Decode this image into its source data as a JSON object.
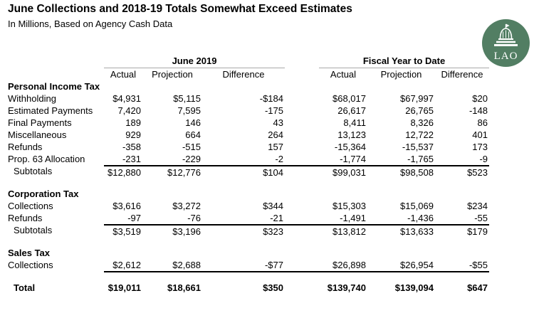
{
  "title": "June Collections and 2018-19 Totals Somewhat Exceed Estimates",
  "subtitle": "In Millions, Based on Agency Cash Data",
  "logo": {
    "text": "LAO",
    "circle_color": "#527e63",
    "glyph_color": "#ffffff"
  },
  "table": {
    "groups": [
      {
        "label": "June 2019",
        "columns": [
          "Actual",
          "Projection",
          "Difference"
        ]
      },
      {
        "label": "Fiscal Year to Date",
        "columns": [
          "Actual",
          "Projection",
          "Difference"
        ]
      }
    ],
    "sections": [
      {
        "header": "Personal Income Tax",
        "rows": [
          {
            "label": "Withholding",
            "june": [
              "$4,931",
              "$5,115",
              "-$184"
            ],
            "fytd": [
              "$68,017",
              "$67,997",
              "$20"
            ]
          },
          {
            "label": "Estimated Payments",
            "june": [
              "7,420",
              "7,595",
              "-175"
            ],
            "fytd": [
              "26,617",
              "26,765",
              "-148"
            ]
          },
          {
            "label": "Final Payments",
            "june": [
              "189",
              "146",
              "43"
            ],
            "fytd": [
              "8,411",
              "8,326",
              "86"
            ]
          },
          {
            "label": "Miscellaneous",
            "june": [
              "929",
              "664",
              "264"
            ],
            "fytd": [
              "13,123",
              "12,722",
              "401"
            ]
          },
          {
            "label": "Refunds",
            "june": [
              "-358",
              "-515",
              "157"
            ],
            "fytd": [
              "-15,364",
              "-15,537",
              "173"
            ]
          },
          {
            "label": "Prop. 63 Allocation",
            "june": [
              "-231",
              "-229",
              "-2"
            ],
            "fytd": [
              "-1,774",
              "-1,765",
              "-9"
            ]
          }
        ],
        "subtotal": {
          "label": "Subtotals",
          "june": [
            "$12,880",
            "$12,776",
            "$104"
          ],
          "fytd": [
            "$99,031",
            "$98,508",
            "$523"
          ]
        }
      },
      {
        "header": "Corporation Tax",
        "rows": [
          {
            "label": "Collections",
            "june": [
              "$3,616",
              "$3,272",
              "$344"
            ],
            "fytd": [
              "$15,303",
              "$15,069",
              "$234"
            ]
          },
          {
            "label": "Refunds",
            "june": [
              "-97",
              "-76",
              "-21"
            ],
            "fytd": [
              "-1,491",
              "-1,436",
              "-55"
            ]
          }
        ],
        "subtotal": {
          "label": "Subtotals",
          "june": [
            "$3,519",
            "$3,196",
            "$323"
          ],
          "fytd": [
            "$13,812",
            "$13,633",
            "$179"
          ]
        }
      },
      {
        "header": "Sales Tax",
        "rows": [
          {
            "label": "Collections",
            "june": [
              "$2,612",
              "$2,688",
              "-$77"
            ],
            "fytd": [
              "$26,898",
              "$26,954",
              "-$55"
            ]
          }
        ],
        "subtotal": null
      }
    ],
    "total": {
      "label": "Total",
      "june": [
        "$19,011",
        "$18,661",
        "$350"
      ],
      "fytd": [
        "$139,740",
        "$139,094",
        "$647"
      ]
    }
  }
}
